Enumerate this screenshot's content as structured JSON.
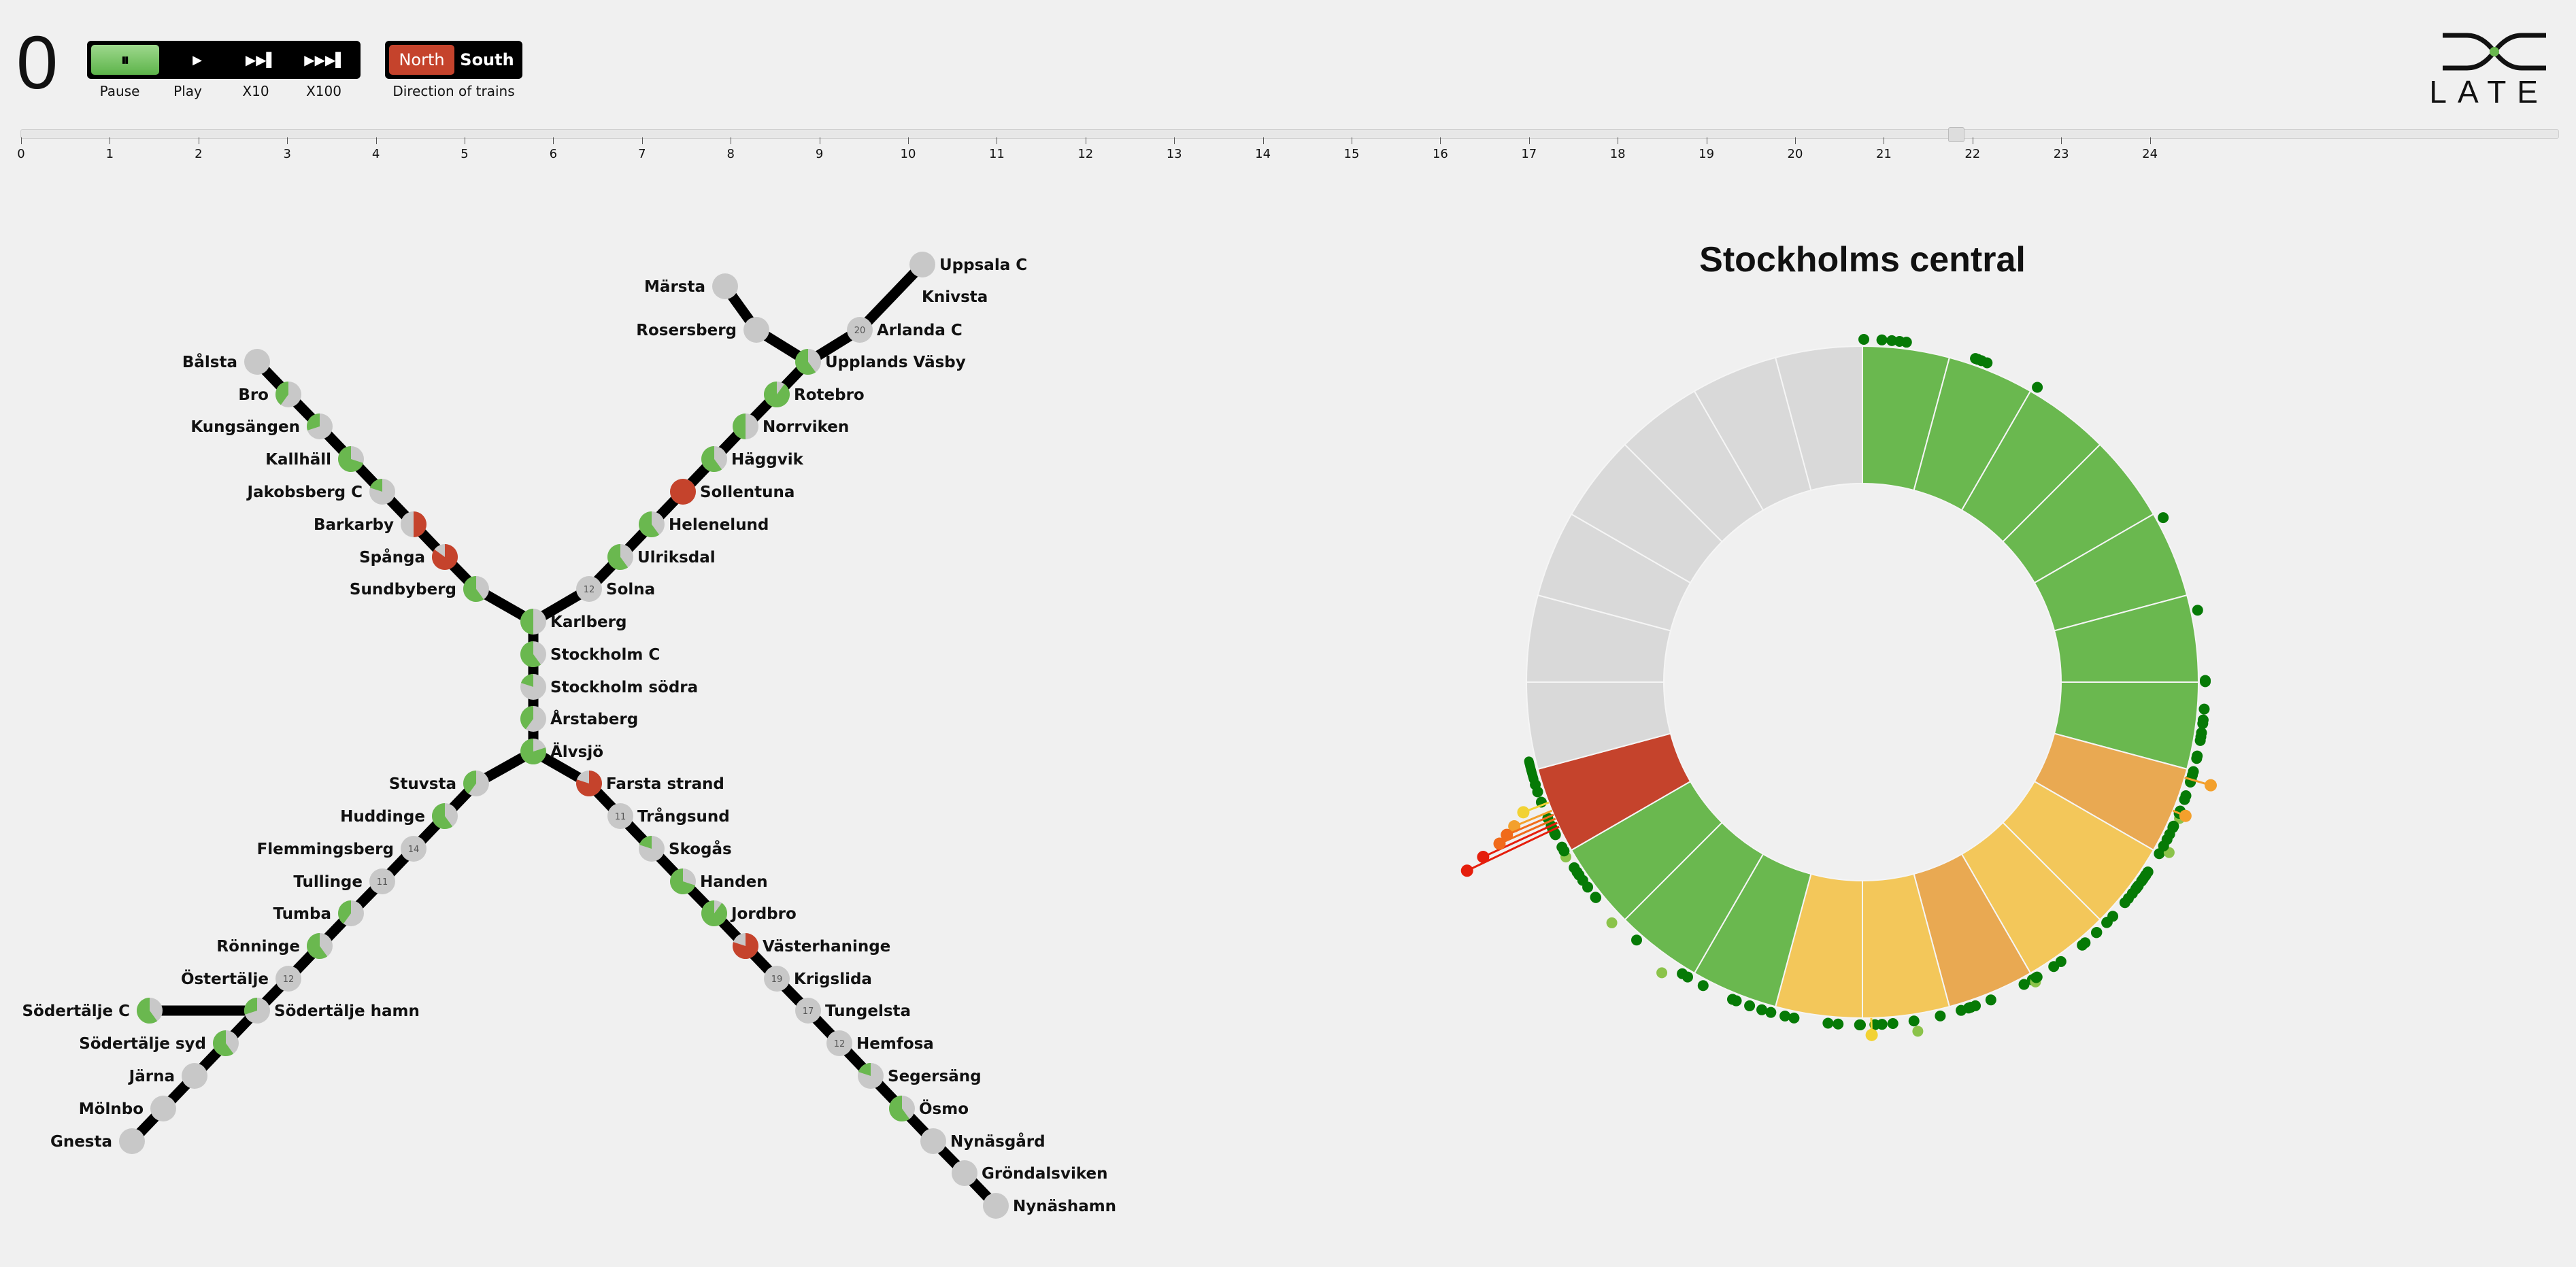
{
  "clock": {
    "value": "0"
  },
  "controls": {
    "pause": {
      "icon": "⏸",
      "label": "Pause"
    },
    "play": {
      "icon": "▶",
      "label": "Play"
    },
    "x10": {
      "icon": "▶▶▌",
      "label": "X10"
    },
    "x100": {
      "icon": "▶▶▶▌",
      "label": "X100"
    }
  },
  "direction": {
    "north": "North",
    "south": "South",
    "label": "Direction of trains",
    "selected": "North"
  },
  "logo": {
    "text": "LATE",
    "icon": "late-logo-icon"
  },
  "timeline": {
    "ticks": [
      "0",
      "1",
      "2",
      "3",
      "4",
      "5",
      "6",
      "7",
      "8",
      "9",
      "10",
      "11",
      "12",
      "13",
      "14",
      "15",
      "16",
      "17",
      "18",
      "19",
      "20",
      "21",
      "22",
      "23",
      "24"
    ],
    "handle_hour": 21.8
  },
  "colors": {
    "green": "#6ab84f",
    "red": "#c5432c",
    "grey": "#c8c8c8",
    "light_grey": "#d9d9d9",
    "orange": "#e9a952",
    "yellow": "#f3c75a",
    "dark_green": "#067a06",
    "track": "#000000"
  },
  "stations": [
    {
      "name": "Märsta",
      "status": "grey"
    },
    {
      "name": "Rosersberg",
      "status": "grey",
      "green": 0.1
    },
    {
      "name": "Upplands Väsby",
      "status": "mixed",
      "green": 0.6
    },
    {
      "name": "Uppsala C",
      "status": "grey"
    },
    {
      "name": "Knivsta",
      "status": "none"
    },
    {
      "name": "Arlanda C",
      "status": "count",
      "badge": "20"
    },
    {
      "name": "Rotebro",
      "status": "mixed",
      "green": 0.9
    },
    {
      "name": "Norrviken",
      "status": "mixed",
      "green": 0.5
    },
    {
      "name": "Häggvik",
      "status": "mixed",
      "green": 0.6
    },
    {
      "name": "Sollentuna",
      "status": "red"
    },
    {
      "name": "Helenelund",
      "status": "mixed",
      "green": 0.6
    },
    {
      "name": "Ulriksdal",
      "status": "mixed",
      "green": 0.6
    },
    {
      "name": "Solna",
      "status": "count",
      "badge": "12"
    },
    {
      "name": "Bålsta",
      "status": "grey"
    },
    {
      "name": "Bro",
      "status": "mixed",
      "green": 0.4
    },
    {
      "name": "Kungsängen",
      "status": "mixed",
      "green": 0.3
    },
    {
      "name": "Kallhäll",
      "status": "mixed",
      "green": 0.7
    },
    {
      "name": "Jakobsberg C",
      "status": "mixed",
      "green": 0.2
    },
    {
      "name": "Barkarby",
      "status": "halfred",
      "red": 0.5
    },
    {
      "name": "Spånga",
      "status": "halfred",
      "red": 0.85
    },
    {
      "name": "Sundbyberg",
      "status": "mixed",
      "green": 0.6
    },
    {
      "name": "Karlberg",
      "status": "mixed",
      "green": 0.5
    },
    {
      "name": "Stockholm C",
      "status": "mixed",
      "green": 0.6
    },
    {
      "name": "Stockholm södra",
      "status": "mixed",
      "green": 0.2
    },
    {
      "name": "Årstaberg",
      "status": "mixed",
      "green": 0.4
    },
    {
      "name": "Älvsjö",
      "status": "mixed",
      "green": 0.8
    },
    {
      "name": "Stuvsta",
      "status": "mixed",
      "green": 0.4
    },
    {
      "name": "Huddinge",
      "status": "mixed",
      "green": 0.6
    },
    {
      "name": "Flemmingsberg",
      "status": "count",
      "badge": "14"
    },
    {
      "name": "Tullinge",
      "status": "count",
      "badge": "11"
    },
    {
      "name": "Tumba",
      "status": "mixed",
      "green": 0.4
    },
    {
      "name": "Rönninge",
      "status": "mixed",
      "green": 0.6
    },
    {
      "name": "Östertälje",
      "status": "count",
      "badge": "12"
    },
    {
      "name": "Södertälje C",
      "status": "mixed",
      "green": 0.6
    },
    {
      "name": "Södertälje hamn",
      "status": "mixed",
      "green": 0.3
    },
    {
      "name": "Södertälje syd",
      "status": "mixed",
      "green": 0.6
    },
    {
      "name": "Järna",
      "status": "grey"
    },
    {
      "name": "Mölnbo",
      "status": "grey"
    },
    {
      "name": "Gnesta",
      "status": "grey"
    },
    {
      "name": "Farsta strand",
      "status": "halfred",
      "red": 0.8
    },
    {
      "name": "Trångsund",
      "status": "count",
      "badge": "11"
    },
    {
      "name": "Skogås",
      "status": "mixed",
      "green": 0.2
    },
    {
      "name": "Handen",
      "status": "mixed",
      "green": 0.7
    },
    {
      "name": "Jordbro",
      "status": "mixed",
      "green": 0.9
    },
    {
      "name": "Västerhaninge",
      "status": "halfred",
      "red": 0.8
    },
    {
      "name": "Krigslida",
      "status": "count",
      "badge": "19"
    },
    {
      "name": "Tungelsta",
      "status": "count",
      "badge": "17"
    },
    {
      "name": "Hemfosa",
      "status": "count",
      "badge": "12"
    },
    {
      "name": "Segersäng",
      "status": "mixed",
      "green": 0.2
    },
    {
      "name": "Ösmo",
      "status": "mixed",
      "green": 0.6
    },
    {
      "name": "Nynäsgård",
      "status": "grey"
    },
    {
      "name": "Gröndalsviken",
      "status": "grey"
    },
    {
      "name": "Nynäshamn",
      "status": "grey"
    }
  ],
  "radial": {
    "title": "Stockholms central",
    "hours": [
      {
        "h": 0,
        "status": "green"
      },
      {
        "h": 1,
        "status": "green"
      },
      {
        "h": 2,
        "status": "green"
      },
      {
        "h": 3,
        "status": "green"
      },
      {
        "h": 4,
        "status": "green"
      },
      {
        "h": 5,
        "status": "green"
      },
      {
        "h": 6,
        "status": "green"
      },
      {
        "h": 7,
        "status": "orange"
      },
      {
        "h": 8,
        "status": "yellow"
      },
      {
        "h": 9,
        "status": "yellow"
      },
      {
        "h": 10,
        "status": "orange"
      },
      {
        "h": 11,
        "status": "yellow"
      },
      {
        "h": 12,
        "status": "yellow"
      },
      {
        "h": 13,
        "status": "green"
      },
      {
        "h": 14,
        "status": "green"
      },
      {
        "h": 15,
        "status": "green"
      },
      {
        "h": 16,
        "status": "red"
      },
      {
        "h": 17,
        "status": "light_grey"
      },
      {
        "h": 18,
        "status": "light_grey"
      },
      {
        "h": 19,
        "status": "light_grey"
      },
      {
        "h": 20,
        "status": "light_grey"
      },
      {
        "h": 21,
        "status": "light_grey"
      },
      {
        "h": 22,
        "status": "light_grey"
      },
      {
        "h": 23,
        "status": "light_grey"
      }
    ]
  }
}
